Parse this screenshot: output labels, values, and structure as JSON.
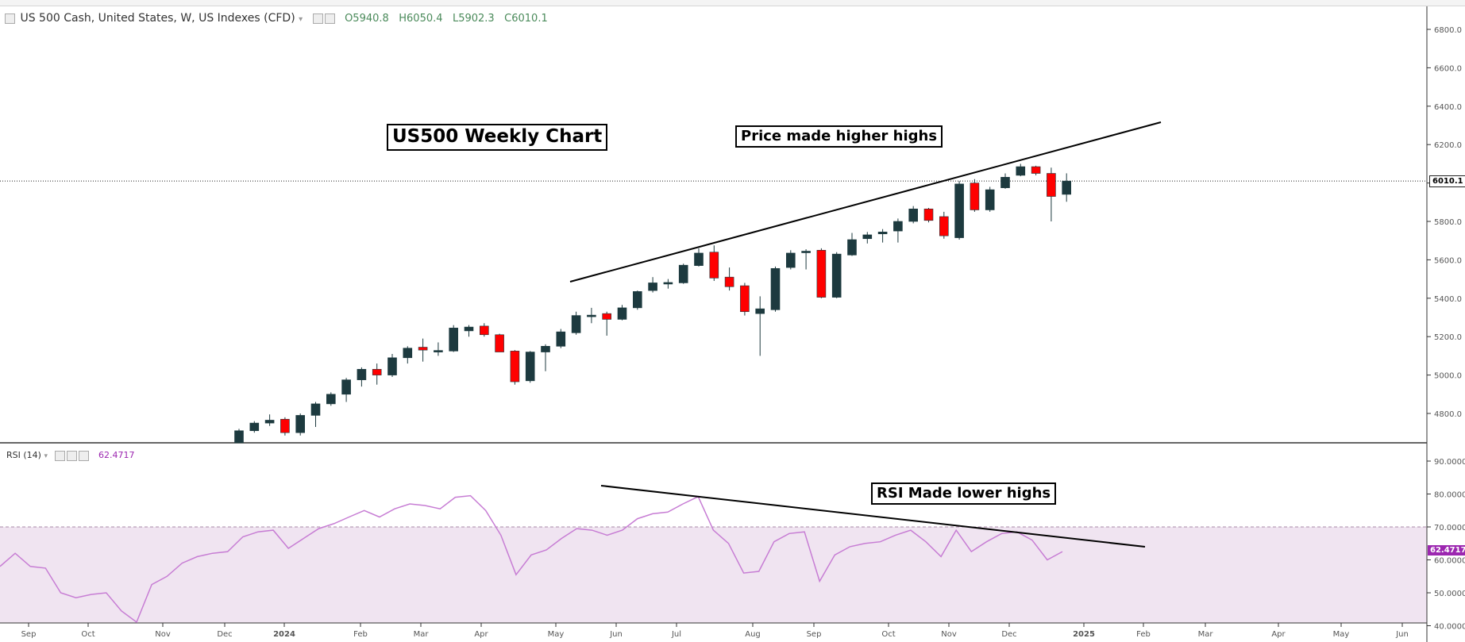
{
  "header": {
    "symbol_label": "US 500 Cash, United States, W, US Indexes (CFD)",
    "ohlc": {
      "open": "O5940.8",
      "high": "H6050.4",
      "low": "L5902.3",
      "close": "C6010.1"
    }
  },
  "annotations": {
    "title": "US500 Weekly Chart",
    "price_note": "Price made higher highs",
    "rsi_note": "RSI Made lower highs"
  },
  "rsi_panel": {
    "label": "RSI (14)",
    "value": "62.4717",
    "color": "#9c27b0"
  },
  "price_tag": "6010.1",
  "rsi_tag": "62.4717",
  "colors": {
    "up": "#1d3a3f",
    "down": "#ff0000",
    "rsi_line": "#c77dd4",
    "rsi_band": "#f0e4f1"
  },
  "chart_data": [
    {
      "type": "candlestick",
      "title": "US500 Weekly Chart",
      "ylim": [
        4650,
        6900
      ],
      "y_ticks": [
        "6800.0",
        "6600.0",
        "6400.0",
        "6200.0",
        "6000.0",
        "5800.0",
        "5600.0",
        "5400.0",
        "5200.0",
        "5000.0",
        "4800.0"
      ],
      "x_tick_labels": [
        "Sep",
        "Oct",
        "Nov",
        "Dec",
        "2024",
        "Feb",
        "Mar",
        "Apr",
        "May",
        "Jun",
        "Jul",
        "Aug",
        "Sep",
        "Oct",
        "Nov",
        "Dec",
        "2025",
        "Feb",
        "Mar",
        "Apr",
        "May",
        "Jun"
      ],
      "last_price": 6010.1,
      "candles": [
        {
          "o": 4600,
          "h": 4720,
          "l": 4580,
          "c": 4710
        },
        {
          "o": 4710,
          "h": 4760,
          "l": 4700,
          "c": 4750
        },
        {
          "o": 4750,
          "h": 4795,
          "l": 4735,
          "c": 4765
        },
        {
          "o": 4770,
          "h": 4780,
          "l": 4685,
          "c": 4700
        },
        {
          "o": 4700,
          "h": 4800,
          "l": 4685,
          "c": 4790
        },
        {
          "o": 4790,
          "h": 4860,
          "l": 4730,
          "c": 4850
        },
        {
          "o": 4850,
          "h": 4910,
          "l": 4840,
          "c": 4900
        },
        {
          "o": 4900,
          "h": 4985,
          "l": 4860,
          "c": 4975
        },
        {
          "o": 4975,
          "h": 5040,
          "l": 4940,
          "c": 5030
        },
        {
          "o": 5030,
          "h": 5060,
          "l": 4950,
          "c": 5000
        },
        {
          "o": 5000,
          "h": 5110,
          "l": 4990,
          "c": 5090
        },
        {
          "o": 5090,
          "h": 5150,
          "l": 5060,
          "c": 5140
        },
        {
          "o": 5145,
          "h": 5190,
          "l": 5070,
          "c": 5130
        },
        {
          "o": 5125,
          "h": 5170,
          "l": 5100,
          "c": 5128
        },
        {
          "o": 5125,
          "h": 5260,
          "l": 5120,
          "c": 5245
        },
        {
          "o": 5230,
          "h": 5260,
          "l": 5200,
          "c": 5250
        },
        {
          "o": 5255,
          "h": 5270,
          "l": 5200,
          "c": 5210
        },
        {
          "o": 5210,
          "h": 5215,
          "l": 5130,
          "c": 5120
        },
        {
          "o": 5125,
          "h": 5130,
          "l": 4950,
          "c": 4965
        },
        {
          "o": 4970,
          "h": 5125,
          "l": 4960,
          "c": 5120
        },
        {
          "o": 5120,
          "h": 5160,
          "l": 5020,
          "c": 5150
        },
        {
          "o": 5150,
          "h": 5240,
          "l": 5140,
          "c": 5225
        },
        {
          "o": 5220,
          "h": 5330,
          "l": 5210,
          "c": 5310
        },
        {
          "o": 5310,
          "h": 5350,
          "l": 5270,
          "c": 5312
        },
        {
          "o": 5320,
          "h": 5330,
          "l": 5205,
          "c": 5290
        },
        {
          "o": 5290,
          "h": 5365,
          "l": 5285,
          "c": 5350
        },
        {
          "o": 5350,
          "h": 5440,
          "l": 5340,
          "c": 5435
        },
        {
          "o": 5440,
          "h": 5510,
          "l": 5430,
          "c": 5480
        },
        {
          "o": 5480,
          "h": 5500,
          "l": 5450,
          "c": 5482
        },
        {
          "o": 5480,
          "h": 5580,
          "l": 5475,
          "c": 5572
        },
        {
          "o": 5570,
          "h": 5660,
          "l": 5565,
          "c": 5635
        },
        {
          "o": 5640,
          "h": 5675,
          "l": 5490,
          "c": 5505
        },
        {
          "o": 5510,
          "h": 5560,
          "l": 5440,
          "c": 5460
        },
        {
          "o": 5465,
          "h": 5480,
          "l": 5310,
          "c": 5330
        },
        {
          "o": 5320,
          "h": 5410,
          "l": 5100,
          "c": 5345
        },
        {
          "o": 5340,
          "h": 5565,
          "l": 5330,
          "c": 5555
        },
        {
          "o": 5560,
          "h": 5650,
          "l": 5550,
          "c": 5635
        },
        {
          "o": 5640,
          "h": 5655,
          "l": 5550,
          "c": 5645
        },
        {
          "o": 5650,
          "h": 5660,
          "l": 5400,
          "c": 5405
        },
        {
          "o": 5405,
          "h": 5640,
          "l": 5400,
          "c": 5630
        },
        {
          "o": 5625,
          "h": 5740,
          "l": 5620,
          "c": 5705
        },
        {
          "o": 5710,
          "h": 5745,
          "l": 5685,
          "c": 5730
        },
        {
          "o": 5735,
          "h": 5760,
          "l": 5690,
          "c": 5745
        },
        {
          "o": 5750,
          "h": 5815,
          "l": 5690,
          "c": 5800
        },
        {
          "o": 5800,
          "h": 5880,
          "l": 5790,
          "c": 5865
        },
        {
          "o": 5865,
          "h": 5870,
          "l": 5795,
          "c": 5805
        },
        {
          "o": 5825,
          "h": 5850,
          "l": 5710,
          "c": 5725
        },
        {
          "o": 5715,
          "h": 6010,
          "l": 5705,
          "c": 5995
        },
        {
          "o": 6000,
          "h": 6020,
          "l": 5850,
          "c": 5860
        },
        {
          "o": 5860,
          "h": 5980,
          "l": 5850,
          "c": 5965
        },
        {
          "o": 5975,
          "h": 6050,
          "l": 5970,
          "c": 6030
        },
        {
          "o": 6040,
          "h": 6100,
          "l": 6035,
          "c": 6085
        },
        {
          "o": 6085,
          "h": 6090,
          "l": 6040,
          "c": 6050
        },
        {
          "o": 6050,
          "h": 6080,
          "l": 5800,
          "c": 5930
        },
        {
          "o": 5940.8,
          "h": 6050.4,
          "l": 5902.3,
          "c": 6010.1
        }
      ]
    },
    {
      "type": "line",
      "name": "RSI (14)",
      "ylim": [
        40,
        95
      ],
      "y_ticks": [
        "90.0000",
        "80.0000",
        "70.0000",
        "60.0000",
        "50.0000",
        "40.0000"
      ],
      "overbought": 70,
      "values": [
        58,
        62,
        58,
        57.5,
        50,
        48.5,
        49.5,
        50,
        44.5,
        40,
        52.5,
        55,
        59,
        61,
        62,
        62.5,
        67,
        68.5,
        69,
        63.5,
        66.5,
        69.5,
        71,
        73,
        75,
        73,
        75.5,
        77,
        76.5,
        75.5,
        79,
        79.5,
        75,
        67.5,
        55.5,
        61.5,
        63,
        66.5,
        69.5,
        69,
        67.5,
        69,
        72.5,
        74,
        74.5,
        77,
        79.2,
        69,
        65,
        56,
        56.5,
        65.5,
        68,
        68.5,
        53.5,
        61.5,
        64,
        65,
        65.5,
        67.5,
        69,
        65.5,
        61,
        69,
        62.5,
        65.5,
        68,
        68.5,
        66,
        60,
        62.5
      ]
    }
  ]
}
